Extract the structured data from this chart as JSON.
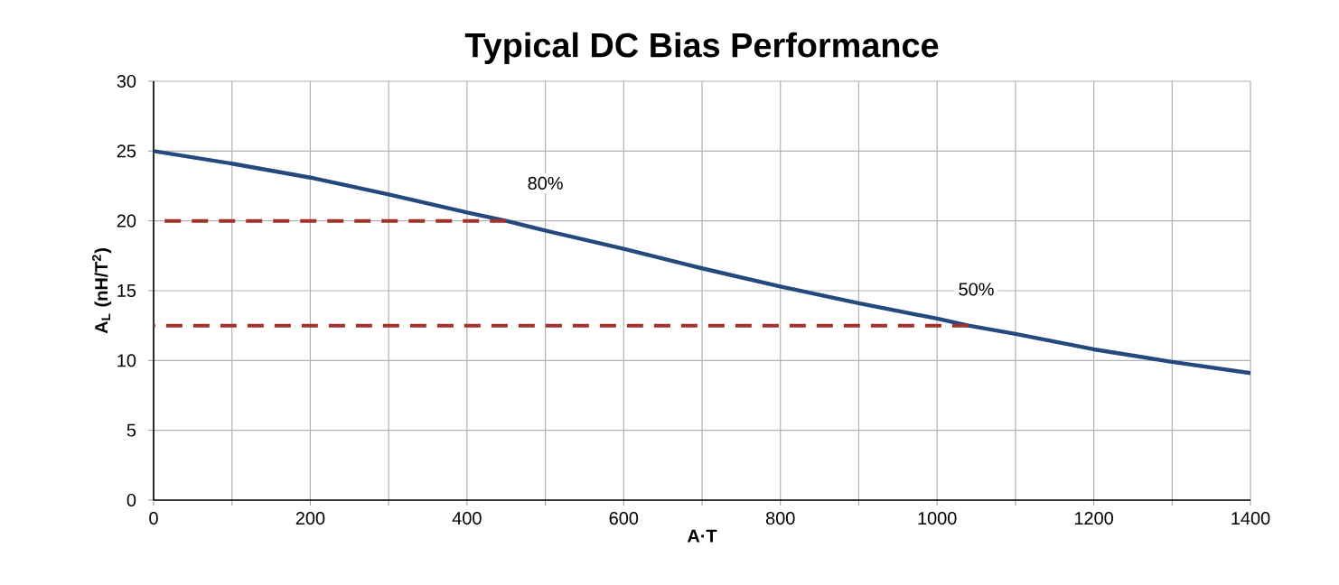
{
  "chart_data": {
    "type": "line",
    "title": "Typical DC Bias Performance",
    "xlabel": "A·T",
    "ylabel": "A$_{L}$ (nH/T$^{2}$)",
    "xlim": [
      0,
      1400
    ],
    "ylim": [
      0,
      30
    ],
    "xticks": [
      0,
      {
        "value": 100,
        "label": null
      },
      200,
      {
        "value": 300,
        "label": null
      },
      400,
      {
        "value": 500,
        "label": null
      },
      600,
      {
        "value": 700,
        "label": null
      },
      800,
      {
        "value": 900,
        "label": null
      },
      1000,
      {
        "value": 1100,
        "label": null
      },
      1200,
      {
        "value": 1300,
        "label": null
      },
      1400
    ],
    "yticks": [
      0,
      5,
      10,
      15,
      20,
      25,
      30
    ],
    "grid": true,
    "marker": "none",
    "series": [
      {
        "color": "#24497f",
        "line_style": "solid",
        "x": [
          0,
          100,
          200,
          300,
          400,
          450,
          500,
          600,
          700,
          800,
          900,
          1000,
          1040,
          1100,
          1200,
          1300,
          1400
        ],
        "values": [
          25,
          24.1,
          23.1,
          21.9,
          20.6,
          20,
          19.3,
          18,
          16.6,
          15.3,
          14.1,
          13,
          12.5,
          11.9,
          10.8,
          9.9,
          9.1
        ]
      },
      {
        "color": "#a3312c",
        "line_style": "dashed",
        "x": [
          0,
          450
        ],
        "values": [
          20,
          20
        ]
      },
      {
        "color": "#a3312c",
        "line_style": "dashed",
        "x": [
          0,
          1040
        ],
        "values": [
          12.5,
          12.5
        ]
      }
    ],
    "annotations": [
      {
        "text": "80%",
        "x": 500,
        "y": 22.7
      },
      {
        "text": "50%",
        "x": 1050,
        "y": 15.1
      }
    ]
  }
}
